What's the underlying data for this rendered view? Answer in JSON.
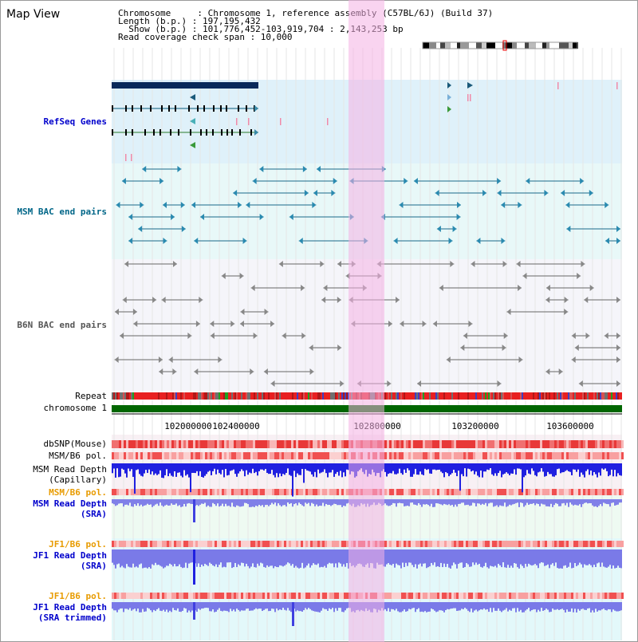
{
  "title": "Map View",
  "info": {
    "chromosome_label": "Chromosome     : Chromosome 1, reference assembly (C57BL/6J) (Build 37)",
    "length_label": "Length (b.p.) : 197,195,432",
    "show_label": "  Show (b.p.) : 101,776,452-103,919,704 : 2,143,253 bp",
    "coverage_label": "Read coverage check span : 10,000"
  },
  "tracks": {
    "refseq": "RefSeq Genes",
    "msm_bac": "MSM BAC end pairs",
    "b6n_bac": "B6N BAC end pairs",
    "repeat": "Repeat",
    "chromosome": "chromosome 1",
    "dbsnp": "dbSNP(Mouse)",
    "msm_b6_pol": "MSM/B6 pol.",
    "msm_read_depth_cap_1": "MSM Read Depth",
    "msm_read_depth_cap_2": "(Capillary)",
    "msm_b6_pol_2": "MSM/B6 pol.",
    "msm_read_depth_sra_1": "MSM Read Depth",
    "msm_read_depth_sra_2": "(SRA)",
    "jf1_b6_pol": "JF1/B6 pol.",
    "jf1_read_depth_1": "JF1 Read Depth",
    "jf1_read_depth_2": "(SRA)",
    "jf1_b6_pol_2": "JF1/B6 pol.",
    "jf1_read_depth_trim_1": "JF1 Read Depth",
    "jf1_read_depth_trim_2": "(SRA trimmed)"
  },
  "axis": {
    "ticks": [
      "102000000",
      "102400000",
      "102800000",
      "103200000",
      "103600000"
    ]
  },
  "colors": {
    "refseq_label": "#0000cc",
    "msm_bac_label": "#006688",
    "b6n_label": "#555555",
    "pol_label": "#e89b00",
    "depth_label": "#0000cc",
    "highlight": "#f7c6ee",
    "chromosome_bar": "#006600"
  }
}
